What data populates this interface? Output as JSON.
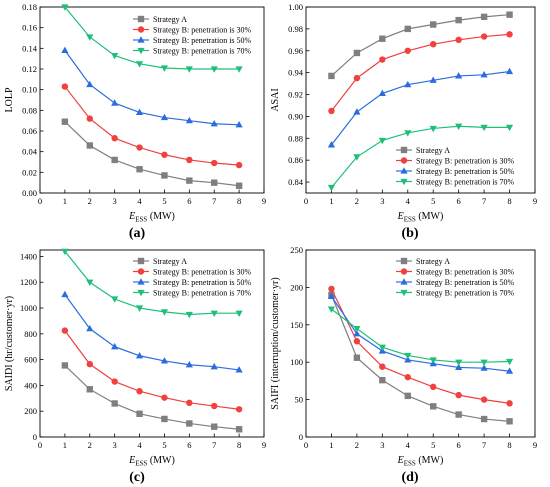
{
  "colors": {
    "strategy_a": "#7f7f7f",
    "b30": "#f04040",
    "b50": "#2b6de0",
    "b70": "#1fbf7a",
    "axis": "#000000"
  },
  "legend_labels": [
    "Strategy A",
    "Strategy B: penetration is 30%",
    "Strategy B: penetration is 50%",
    "Strategy B: penetration is 70%"
  ],
  "chart_data": [
    {
      "type": "line",
      "panel_label": "(a)",
      "ylabel": "LOLP",
      "xlabel_main": "E",
      "xlabel_sub": "ESS",
      "xlabel_unit": " (MW)",
      "xlim": [
        0,
        9
      ],
      "ylim": [
        0,
        0.18
      ],
      "xticks": [
        0,
        1,
        2,
        3,
        4,
        5,
        6,
        7,
        8,
        9
      ],
      "yticks": [
        0.0,
        0.02,
        0.04,
        0.06,
        0.08,
        0.1,
        0.12,
        0.14,
        0.16,
        0.18
      ],
      "ytick_labels": [
        "0.00",
        "0.02",
        "0.04",
        "0.06",
        "0.08",
        "0.10",
        "0.12",
        "0.14",
        "0.16",
        "0.18"
      ],
      "x": [
        1,
        2,
        3,
        4,
        5,
        6,
        7,
        8
      ],
      "legend_position": "top-right",
      "series": [
        {
          "name": "Strategy A",
          "values": [
            0.069,
            0.046,
            0.032,
            0.023,
            0.017,
            0.012,
            0.01,
            0.007
          ]
        },
        {
          "name": "Strategy B: penetration is 30%",
          "values": [
            0.103,
            0.072,
            0.053,
            0.044,
            0.037,
            0.032,
            0.029,
            0.027
          ]
        },
        {
          "name": "Strategy B: penetration is 50%",
          "values": [
            0.138,
            0.105,
            0.087,
            0.078,
            0.073,
            0.07,
            0.067,
            0.066
          ]
        },
        {
          "name": "Strategy B: penetration is 70%",
          "values": [
            0.18,
            0.151,
            0.133,
            0.125,
            0.121,
            0.12,
            0.12,
            0.12
          ]
        }
      ]
    },
    {
      "type": "line",
      "panel_label": "(b)",
      "ylabel": "ASAI",
      "xlabel_main": "E",
      "xlabel_sub": "ESS",
      "xlabel_unit": " (MW)",
      "xlim": [
        0,
        9
      ],
      "ylim": [
        0.83,
        1.0
      ],
      "xticks": [
        0,
        1,
        2,
        3,
        4,
        5,
        6,
        7,
        8,
        9
      ],
      "yticks": [
        0.84,
        0.86,
        0.88,
        0.9,
        0.92,
        0.94,
        0.96,
        0.98,
        1.0
      ],
      "ytick_labels": [
        "0.84",
        "0.86",
        "0.88",
        "0.90",
        "0.92",
        "0.94",
        "0.96",
        "0.98",
        "1.00"
      ],
      "x": [
        1,
        2,
        3,
        4,
        5,
        6,
        7,
        8
      ],
      "legend_position": "bottom-right",
      "series": [
        {
          "name": "Strategy A",
          "values": [
            0.937,
            0.958,
            0.971,
            0.98,
            0.984,
            0.988,
            0.991,
            0.993
          ]
        },
        {
          "name": "Strategy B: penetration is 30%",
          "values": [
            0.905,
            0.935,
            0.952,
            0.96,
            0.966,
            0.97,
            0.973,
            0.975
          ]
        },
        {
          "name": "Strategy B: penetration is 50%",
          "values": [
            0.874,
            0.904,
            0.921,
            0.929,
            0.933,
            0.937,
            0.938,
            0.941
          ]
        },
        {
          "name": "Strategy B: penetration is 70%",
          "values": [
            0.835,
            0.863,
            0.878,
            0.885,
            0.889,
            0.891,
            0.89,
            0.89
          ]
        }
      ]
    },
    {
      "type": "line",
      "panel_label": "(c)",
      "ylabel": "SAIDI (hr/customer·yr)",
      "xlabel_main": "E",
      "xlabel_sub": "ESS",
      "xlabel_unit": " (MW)",
      "xlim": [
        0,
        9
      ],
      "ylim": [
        0,
        1450
      ],
      "xticks": [
        0,
        1,
        2,
        3,
        4,
        5,
        6,
        7,
        8,
        9
      ],
      "yticks": [
        0,
        200,
        400,
        600,
        800,
        1000,
        1200,
        1400
      ],
      "ytick_labels": [
        "0",
        "200",
        "400",
        "600",
        "800",
        "1000",
        "1200",
        "1400"
      ],
      "x": [
        1,
        2,
        3,
        4,
        5,
        6,
        7,
        8
      ],
      "legend_position": "top-right",
      "series": [
        {
          "name": "Strategy A",
          "values": [
            555,
            370,
            260,
            180,
            140,
            105,
            80,
            60
          ]
        },
        {
          "name": "Strategy B: penetration is 30%",
          "values": [
            825,
            565,
            430,
            355,
            305,
            265,
            240,
            215
          ]
        },
        {
          "name": "Strategy B: penetration is 50%",
          "values": [
            1105,
            840,
            700,
            630,
            590,
            560,
            545,
            520
          ]
        },
        {
          "name": "Strategy B: penetration is 70%",
          "values": [
            1440,
            1200,
            1070,
            1000,
            970,
            950,
            960,
            960
          ]
        }
      ]
    },
    {
      "type": "line",
      "panel_label": "(d)",
      "ylabel": "SAIFI (interruption/customer·yr)",
      "xlabel_main": "E",
      "xlabel_sub": "ESS",
      "xlabel_unit": " (MW)",
      "xlim": [
        0,
        9
      ],
      "ylim": [
        0,
        250
      ],
      "xticks": [
        0,
        1,
        2,
        3,
        4,
        5,
        6,
        7,
        8,
        9
      ],
      "yticks": [
        0,
        50,
        100,
        150,
        200,
        250
      ],
      "ytick_labels": [
        "0",
        "50",
        "100",
        "150",
        "200",
        "250"
      ],
      "x": [
        1,
        2,
        3,
        4,
        5,
        6,
        7,
        8
      ],
      "legend_position": "top-right",
      "series": [
        {
          "name": "Strategy A",
          "values": [
            190,
            106,
            76,
            55,
            41,
            30,
            24,
            21
          ]
        },
        {
          "name": "Strategy B: penetration is 30%",
          "values": [
            198,
            128,
            94,
            80,
            67,
            56,
            50,
            45
          ]
        },
        {
          "name": "Strategy B: penetration is 50%",
          "values": [
            188,
            138,
            115,
            103,
            98,
            93,
            92,
            88
          ]
        },
        {
          "name": "Strategy B: penetration is 70%",
          "values": [
            171,
            145,
            120,
            109,
            103,
            100,
            100,
            101
          ]
        }
      ]
    }
  ]
}
